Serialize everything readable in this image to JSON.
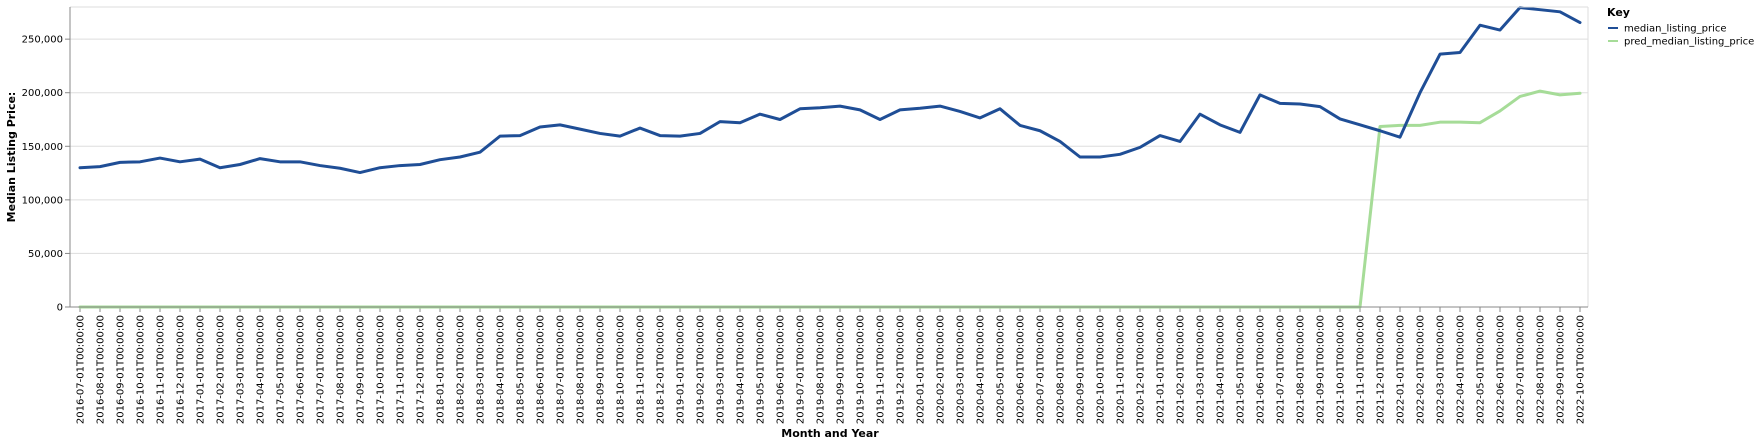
{
  "chart_data": {
    "type": "line",
    "xlabel": "Month and Year",
    "ylabel": "Median Listing Price:",
    "ylim": [
      0,
      280000
    ],
    "yticks": [
      0,
      50000,
      100000,
      150000,
      200000,
      250000
    ],
    "ytick_labels": [
      "0",
      "50,000",
      "100,000",
      "150,000",
      "200,000",
      "250,000"
    ],
    "grid": true,
    "legend": {
      "title": "Key",
      "placement": "top-right"
    },
    "categories": [
      "2016-07-01T00:00:00",
      "2016-08-01T00:00:00",
      "2016-09-01T00:00:00",
      "2016-10-01T00:00:00",
      "2016-11-01T00:00:00",
      "2016-12-01T00:00:00",
      "2017-01-01T00:00:00",
      "2017-02-01T00:00:00",
      "2017-03-01T00:00:00",
      "2017-04-01T00:00:00",
      "2017-05-01T00:00:00",
      "2017-06-01T00:00:00",
      "2017-07-01T00:00:00",
      "2017-08-01T00:00:00",
      "2017-09-01T00:00:00",
      "2017-10-01T00:00:00",
      "2017-11-01T00:00:00",
      "2017-12-01T00:00:00",
      "2018-01-01T00:00:00",
      "2018-02-01T00:00:00",
      "2018-03-01T00:00:00",
      "2018-04-01T00:00:00",
      "2018-05-01T00:00:00",
      "2018-06-01T00:00:00",
      "2018-07-01T00:00:00",
      "2018-08-01T00:00:00",
      "2018-09-01T00:00:00",
      "2018-10-01T00:00:00",
      "2018-11-01T00:00:00",
      "2018-12-01T00:00:00",
      "2019-01-01T00:00:00",
      "2019-02-01T00:00:00",
      "2019-03-01T00:00:00",
      "2019-04-01T00:00:00",
      "2019-05-01T00:00:00",
      "2019-06-01T00:00:00",
      "2019-07-01T00:00:00",
      "2019-08-01T00:00:00",
      "2019-09-01T00:00:00",
      "2019-10-01T00:00:00",
      "2019-11-01T00:00:00",
      "2019-12-01T00:00:00",
      "2020-01-01T00:00:00",
      "2020-02-01T00:00:00",
      "2020-03-01T00:00:00",
      "2020-04-01T00:00:00",
      "2020-05-01T00:00:00",
      "2020-06-01T00:00:00",
      "2020-07-01T00:00:00",
      "2020-08-01T00:00:00",
      "2020-09-01T00:00:00",
      "2020-10-01T00:00:00",
      "2020-11-01T00:00:00",
      "2020-12-01T00:00:00",
      "2021-01-01T00:00:00",
      "2021-02-01T00:00:00",
      "2021-03-01T00:00:00",
      "2021-04-01T00:00:00",
      "2021-05-01T00:00:00",
      "2021-06-01T00:00:00",
      "2021-07-01T00:00:00",
      "2021-08-01T00:00:00",
      "2021-09-01T00:00:00",
      "2021-10-01T00:00:00",
      "2021-11-01T00:00:00",
      "2021-12-01T00:00:00",
      "2022-01-01T00:00:00",
      "2022-02-01T00:00:00",
      "2022-03-01T00:00:00",
      "2022-04-01T00:00:00",
      "2022-05-01T00:00:00",
      "2022-06-01T00:00:00",
      "2022-07-01T00:00:00",
      "2022-08-01T00:00:00",
      "2022-09-01T00:00:00",
      "2022-10-01T00:00:00"
    ],
    "series": [
      {
        "name": "median_listing_price",
        "color": "#1f4e96",
        "values": [
          130000,
          131000,
          135000,
          135500,
          139000,
          135500,
          138000,
          130000,
          133000,
          138500,
          135500,
          135500,
          132000,
          129500,
          125500,
          130000,
          132000,
          133000,
          137500,
          140000,
          144500,
          159500,
          160000,
          168000,
          170000,
          166000,
          162000,
          159500,
          167000,
          160000,
          159500,
          162000,
          173000,
          172000,
          180000,
          175000,
          185000,
          186000,
          187500,
          184000,
          175000,
          184000,
          185500,
          187500,
          182500,
          176500,
          185000,
          169500,
          164500,
          154500,
          140000,
          140000,
          142500,
          149000,
          160000,
          154500,
          180000,
          170000,
          163000,
          198000,
          190000,
          189500,
          187000,
          175500,
          170000,
          164500,
          158500,
          200000,
          236000,
          237500,
          263000,
          258500,
          279500,
          277500,
          275500,
          265500
        ]
      },
      {
        "name": "pred_median_listing_price",
        "color": "#a6dc98",
        "values": [
          0,
          0,
          0,
          0,
          0,
          0,
          0,
          0,
          0,
          0,
          0,
          0,
          0,
          0,
          0,
          0,
          0,
          0,
          0,
          0,
          0,
          0,
          0,
          0,
          0,
          0,
          0,
          0,
          0,
          0,
          0,
          0,
          0,
          0,
          0,
          0,
          0,
          0,
          0,
          0,
          0,
          0,
          0,
          0,
          0,
          0,
          0,
          0,
          0,
          0,
          0,
          0,
          0,
          0,
          0,
          0,
          0,
          0,
          0,
          0,
          0,
          0,
          0,
          0,
          0,
          168500,
          169500,
          169500,
          172500,
          172500,
          172000,
          183000,
          196500,
          201500,
          198000,
          199500
        ]
      }
    ]
  }
}
